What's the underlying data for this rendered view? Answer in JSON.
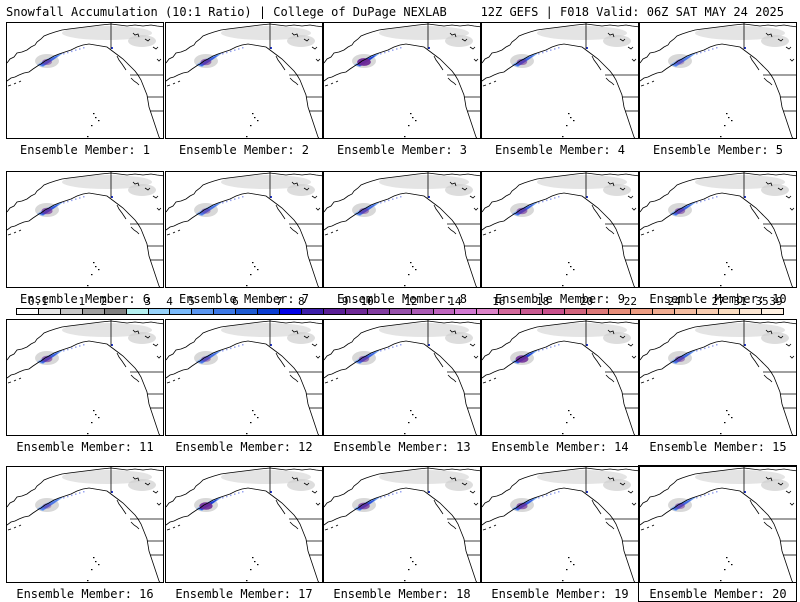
{
  "header": {
    "title": "Snowfall Accumulation (10:1 Ratio) | College of DuPage NEXLAB",
    "run_info": "12Z GEFS | F018 Valid: 06Z SAT MAY 24 2025"
  },
  "map": {
    "region": "Northeast Pacific / Alaska / Pacific Northwest",
    "land_color": "#ffffff",
    "coastline_color": "#000000"
  },
  "members": [
    {
      "caption": "Ensemble Member: 1",
      "intensity": 0.5
    },
    {
      "caption": "Ensemble Member: 2",
      "intensity": 0.6
    },
    {
      "caption": "Ensemble Member: 3",
      "intensity": 0.95
    },
    {
      "caption": "Ensemble Member: 4",
      "intensity": 0.55
    },
    {
      "caption": "Ensemble Member: 5",
      "intensity": 0.35
    },
    {
      "caption": "Ensemble Member: 6",
      "intensity": 0.65
    },
    {
      "caption": "Ensemble Member: 7",
      "intensity": 0.4
    },
    {
      "caption": "Ensemble Member: 8",
      "intensity": 0.5
    },
    {
      "caption": "Ensemble Member: 9",
      "intensity": 0.6
    },
    {
      "caption": "Ensemble Member: 10",
      "intensity": 0.55
    },
    {
      "caption": "Ensemble Member: 11",
      "intensity": 0.6
    },
    {
      "caption": "Ensemble Member: 12",
      "intensity": 0.45
    },
    {
      "caption": "Ensemble Member: 13",
      "intensity": 0.55
    },
    {
      "caption": "Ensemble Member: 14",
      "intensity": 0.85
    },
    {
      "caption": "Ensemble Member: 15",
      "intensity": 0.5
    },
    {
      "caption": "Ensemble Member: 16",
      "intensity": 0.35
    },
    {
      "caption": "Ensemble Member: 17",
      "intensity": 0.9
    },
    {
      "caption": "Ensemble Member: 18",
      "intensity": 0.7
    },
    {
      "caption": "Ensemble Member: 19",
      "intensity": 0.65
    },
    {
      "caption": "Ensemble Member: 20",
      "intensity": 0.5,
      "selected": true
    }
  ],
  "colorbar": {
    "labels": [
      "0.1",
      "1",
      "2",
      "3",
      "4",
      "5",
      "6",
      "7",
      "8",
      "9",
      "10",
      "12",
      "14",
      "16",
      "18",
      "20",
      "22",
      "24",
      "27",
      "31",
      "35",
      "39"
    ],
    "colors": [
      "#ffffff",
      "#e6e6e6",
      "#c8c8c8",
      "#a0a0a0",
      "#808080",
      "#b4f0f0",
      "#96d2fa",
      "#78b9fa",
      "#5a96f0",
      "#3c78e6",
      "#1e5ad2",
      "#0a3cd2",
      "#0000e6",
      "#3c1eaa",
      "#5a1e96",
      "#6e2896",
      "#823ca0",
      "#9650aa",
      "#aa5ab4",
      "#be64be",
      "#d278d2",
      "#dc82c8",
      "#d2689b",
      "#c85a91",
      "#c8508c",
      "#d2647d",
      "#dc7878",
      "#e68c78",
      "#ec9c82",
      "#f0ac91",
      "#f4bca0",
      "#f8ccb0",
      "#fadcc0",
      "#fce6d2",
      "#fff0e1"
    ]
  }
}
